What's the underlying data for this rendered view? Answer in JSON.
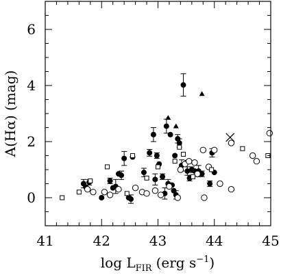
{
  "chart_data": {
    "type": "scatter",
    "xlabel": "log L",
    "xlabel_sub": "FIR",
    "xlabel_units": "(erg s",
    "xlabel_sup": "−1",
    "xlabel_close": ")",
    "ylabel": "A(Hα)  (mag)",
    "xlim": [
      41,
      45
    ],
    "ylim": [
      -1,
      7
    ],
    "xticks": [
      41,
      42,
      43,
      44,
      45
    ],
    "yticks": [
      0,
      2,
      4,
      6
    ],
    "grid": false,
    "series": [
      {
        "marker": "filled-circle",
        "points": [
          {
            "x": 41.68,
            "y": 0.5,
            "err": 0.15
          },
          {
            "x": 41.72,
            "y": 0.38,
            "err": 0
          },
          {
            "x": 41.78,
            "y": 0.55,
            "err": 0.1
          },
          {
            "x": 42.0,
            "y": 0.0,
            "err": 0
          },
          {
            "x": 42.15,
            "y": 0.6,
            "err": 0.1
          },
          {
            "x": 42.2,
            "y": 0.35,
            "err": 0
          },
          {
            "x": 42.25,
            "y": 0.4,
            "err": 0.25
          },
          {
            "x": 42.3,
            "y": 0.85,
            "err": 0
          },
          {
            "x": 42.35,
            "y": 0.8,
            "err": 0.15
          },
          {
            "x": 42.4,
            "y": 1.4,
            "err": 0.25
          },
          {
            "x": 42.48,
            "y": 0.0,
            "err": 0
          },
          {
            "x": 42.52,
            "y": -0.05,
            "err": 0.15
          },
          {
            "x": 42.55,
            "y": 1.45,
            "err": 0
          },
          {
            "x": 42.75,
            "y": 0.9,
            "err": 0.15
          },
          {
            "x": 42.85,
            "y": 1.6,
            "err": 0.12
          },
          {
            "x": 42.92,
            "y": 2.25,
            "err": 0.25
          },
          {
            "x": 42.95,
            "y": 0.65,
            "err": 0.2
          },
          {
            "x": 42.98,
            "y": 1.5,
            "err": 0.1
          },
          {
            "x": 43.02,
            "y": 1.2,
            "err": 0
          },
          {
            "x": 43.08,
            "y": 0.75,
            "err": 0.1
          },
          {
            "x": 43.12,
            "y": 0.15,
            "err": 0.2
          },
          {
            "x": 43.15,
            "y": 2.55,
            "err": 0.25
          },
          {
            "x": 43.18,
            "y": 0.5,
            "err": 0.15
          },
          {
            "x": 43.22,
            "y": 2.25,
            "err": 0
          },
          {
            "x": 43.25,
            "y": 0.45,
            "err": 0
          },
          {
            "x": 43.28,
            "y": 0.25,
            "err": 0
          },
          {
            "x": 43.3,
            "y": 1.5,
            "err": 0
          },
          {
            "x": 43.32,
            "y": 0.1,
            "err": 0.15
          },
          {
            "x": 43.35,
            "y": 2.1,
            "err": 0.15
          },
          {
            "x": 43.38,
            "y": 1.95,
            "err": 0.15
          },
          {
            "x": 43.42,
            "y": 1.15,
            "err": 0.2
          },
          {
            "x": 43.45,
            "y": 4.02,
            "err": 0.4
          },
          {
            "x": 43.5,
            "y": 1.25,
            "err": 0
          },
          {
            "x": 43.52,
            "y": 0.95,
            "err": 0.15
          },
          {
            "x": 43.56,
            "y": 0.7,
            "err": 0.1
          },
          {
            "x": 43.6,
            "y": 1.0,
            "err": 0.1
          },
          {
            "x": 43.65,
            "y": 0.95,
            "err": 0
          },
          {
            "x": 43.72,
            "y": 0.95,
            "err": 0.2
          },
          {
            "x": 43.78,
            "y": 0.85,
            "err": 0.1
          },
          {
            "x": 43.92,
            "y": 0.5,
            "err": 0.1
          },
          {
            "x": 43.96,
            "y": 1.6,
            "err": 0.15
          },
          {
            "x": 44.0,
            "y": 0.9,
            "err": 0
          }
        ]
      },
      {
        "marker": "open-circle",
        "points": [
          {
            "x": 41.75,
            "y": 0.3
          },
          {
            "x": 41.85,
            "y": 0.2
          },
          {
            "x": 42.05,
            "y": 0.2
          },
          {
            "x": 42.15,
            "y": 0.1
          },
          {
            "x": 42.3,
            "y": 0.3
          },
          {
            "x": 42.6,
            "y": 0.35
          },
          {
            "x": 42.72,
            "y": 0.2
          },
          {
            "x": 42.8,
            "y": 0.15
          },
          {
            "x": 42.95,
            "y": 0.25
          },
          {
            "x": 43.05,
            "y": 0.1
          },
          {
            "x": 43.2,
            "y": 0.4
          },
          {
            "x": 43.35,
            "y": 0.0
          },
          {
            "x": 43.4,
            "y": 1.0
          },
          {
            "x": 43.48,
            "y": 1.2
          },
          {
            "x": 43.55,
            "y": 1.3
          },
          {
            "x": 43.65,
            "y": 1.25
          },
          {
            "x": 43.7,
            "y": 0.85
          },
          {
            "x": 43.8,
            "y": 1.7
          },
          {
            "x": 43.82,
            "y": 0.0
          },
          {
            "x": 43.9,
            "y": 1.1
          },
          {
            "x": 44.0,
            "y": 1.7
          },
          {
            "x": 44.1,
            "y": 0.5
          },
          {
            "x": 44.3,
            "y": 0.3
          },
          {
            "x": 44.68,
            "y": 1.5
          },
          {
            "x": 44.75,
            "y": 1.3
          },
          {
            "x": 44.98,
            "y": 2.3
          },
          {
            "x": 44.3,
            "y": 1.95
          }
        ]
      },
      {
        "marker": "open-square",
        "points": [
          {
            "x": 41.3,
            "y": 0.0
          },
          {
            "x": 41.6,
            "y": 0.2
          },
          {
            "x": 41.8,
            "y": 0.6
          },
          {
            "x": 42.1,
            "y": 1.1
          },
          {
            "x": 42.45,
            "y": 0.15
          },
          {
            "x": 42.55,
            "y": 1.5
          },
          {
            "x": 42.8,
            "y": 0.7
          },
          {
            "x": 43.0,
            "y": 1.1
          },
          {
            "x": 43.3,
            "y": 1.3
          },
          {
            "x": 43.38,
            "y": 1.8
          },
          {
            "x": 43.45,
            "y": 1.55
          },
          {
            "x": 43.62,
            "y": 0.75
          },
          {
            "x": 43.95,
            "y": 1.0
          },
          {
            "x": 44.5,
            "y": 1.75
          },
          {
            "x": 44.95,
            "y": 1.5
          }
        ]
      },
      {
        "marker": "filled-triangle",
        "points": [
          {
            "x": 43.18,
            "y": 2.85
          },
          {
            "x": 43.32,
            "y": 2.55
          },
          {
            "x": 43.78,
            "y": 3.7
          }
        ]
      },
      {
        "marker": "cross",
        "points": [
          {
            "x": 44.28,
            "y": 2.15
          }
        ]
      }
    ]
  }
}
